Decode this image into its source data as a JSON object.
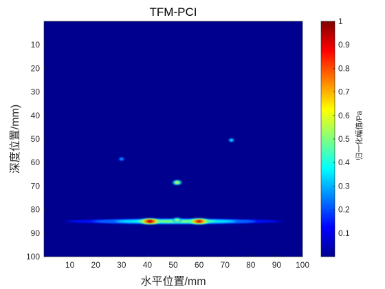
{
  "chart_data": {
    "type": "heatmap",
    "title": "TFM-PCI",
    "xlabel": "水平位置/mm",
    "ylabel": "深度位置/mm)",
    "colorbar_label": "归一化幅值/Pa",
    "colormap": "jet",
    "xlim": [
      0,
      100
    ],
    "ylim": [
      0,
      100
    ],
    "y_direction": "reversed",
    "x_ticks": [
      10,
      20,
      30,
      40,
      50,
      60,
      70,
      80,
      90,
      100
    ],
    "y_ticks": [
      10,
      20,
      30,
      40,
      50,
      60,
      70,
      80,
      90,
      100
    ],
    "colorbar_range": [
      0,
      1
    ],
    "colorbar_ticks": [
      "0.1",
      "0.2",
      "0.3",
      "0.4",
      "0.5",
      "0.6",
      "0.7",
      "0.8",
      "0.9",
      "1"
    ],
    "background_value": 0,
    "features": [
      {
        "kind": "point",
        "x": 30,
        "y": 58.5,
        "value": 0.35
      },
      {
        "kind": "point",
        "x": 72.5,
        "y": 50.5,
        "value": 0.45
      },
      {
        "kind": "point",
        "x": 51.5,
        "y": 68.5,
        "value": 0.65
      },
      {
        "kind": "band",
        "x_from": 8,
        "x_to": 92,
        "y": 85,
        "value": 0.3
      },
      {
        "kind": "band",
        "x_from": 20,
        "x_to": 82,
        "y": 85,
        "value": 0.5
      },
      {
        "kind": "point",
        "x": 41,
        "y": 85,
        "value": 1.0
      },
      {
        "kind": "point",
        "x": 60,
        "y": 85,
        "value": 0.95
      },
      {
        "kind": "point",
        "x": 51.5,
        "y": 84.5,
        "value": 0.6
      }
    ]
  },
  "colors": {
    "background": "#00008f",
    "axis": "#262626"
  }
}
